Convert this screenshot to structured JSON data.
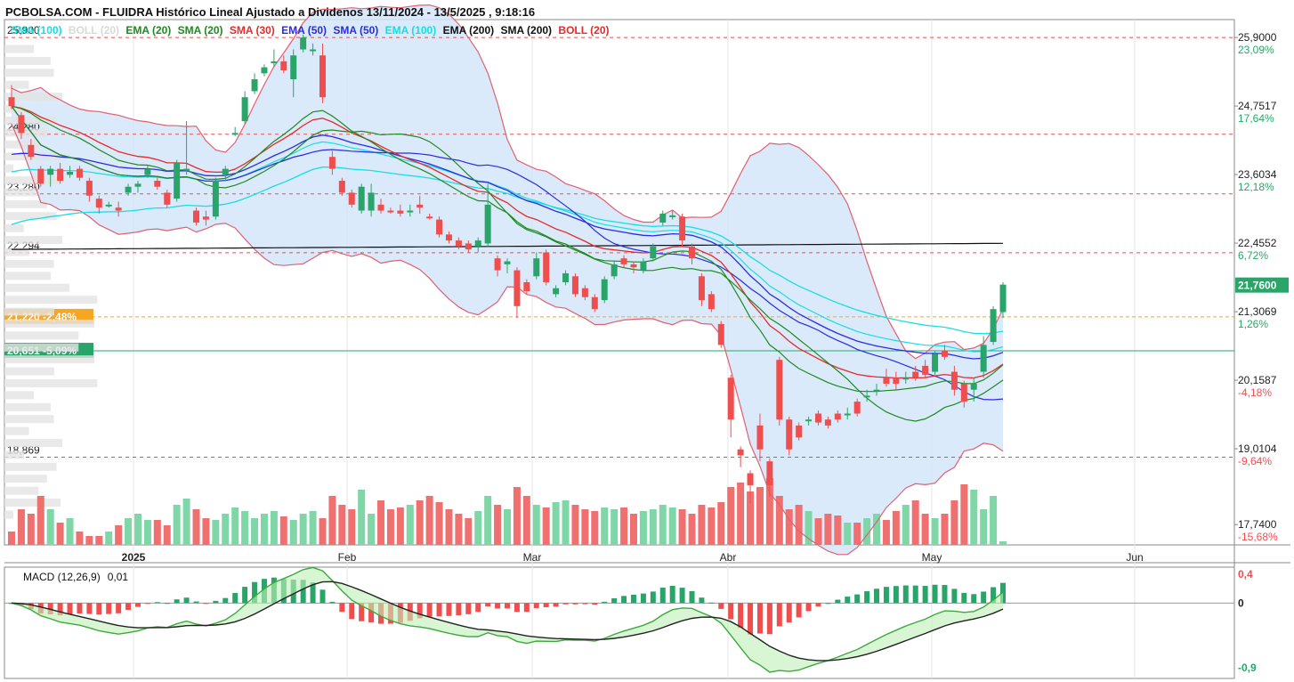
{
  "header": {
    "title": "PCBOLSA.COM - FLUIDRA Histórico Lineal Ajustado a Dividenos 13/11/2024 - 13/5/2025 , 9:18:16"
  },
  "legend": [
    {
      "label": "SMA (100)",
      "color": "#19dde0"
    },
    {
      "label": "BOLL (20)",
      "color": "#d9d9d9"
    },
    {
      "label": "EMA (20)",
      "color": "#1f8a1f"
    },
    {
      "label": "SMA (20)",
      "color": "#1f8a1f"
    },
    {
      "label": "SMA (30)",
      "color": "#e52b2b"
    },
    {
      "label": "EMA (50)",
      "color": "#2b2be5"
    },
    {
      "label": "SMA (50)",
      "color": "#2b2be5"
    },
    {
      "label": "EMA (100)",
      "color": "#19dde0"
    },
    {
      "label": "EMA (200)",
      "color": "#111111"
    },
    {
      "label": "SMA (200)",
      "color": "#111111"
    },
    {
      "label": "BOLL (20)",
      "color": "#e52b2b"
    }
  ],
  "colors": {
    "up": "#2aa56a",
    "down": "#ef4e4e",
    "vol_up": "#7fd6a6",
    "vol_down": "#f07070",
    "boll_fill": "#d4e6fa",
    "boll_line": "#e06070"
  },
  "chart_data": {
    "type": "candlestick",
    "y_axis": {
      "ticks": [
        "25,9000",
        "24,7517",
        "23,6034",
        "22,4552",
        "21,3069",
        "20,1587",
        "19,0104",
        "17,7400"
      ],
      "percent_labels": [
        {
          "text": "23,09%",
          "color": "#2aa56a"
        },
        {
          "text": "17,64%",
          "color": "#2aa56a"
        },
        {
          "text": "12,18%",
          "color": "#2aa56a"
        },
        {
          "text": "6,72%",
          "color": "#2aa56a"
        },
        {
          "text": "1,26%",
          "color": "#2aa56a"
        },
        {
          "text": "-4,18%",
          "color": "#ef4e4e"
        },
        {
          "text": "-9,64%",
          "color": "#ef4e4e"
        },
        {
          "text": "-15,68%",
          "color": "#ef4e4e"
        }
      ],
      "range": [
        17.4,
        26.2
      ]
    },
    "x_axis": {
      "months": [
        "2025",
        "Feb",
        "Mar",
        "Abr",
        "May",
        "Jun"
      ]
    },
    "last_price": "21,7600",
    "reference_lines": [
      {
        "value": 25.9,
        "label": "25,900",
        "color": "#ef4e4e",
        "style": "dashed"
      },
      {
        "value": 24.28,
        "label": "24,280",
        "color": "#ef4e4e",
        "style": "dashed"
      },
      {
        "value": 23.28,
        "label": "23,280",
        "color": "#ef4e4e",
        "style": "dashed"
      },
      {
        "value": 22.294,
        "label": "22,294",
        "color": "#ef4e4e",
        "style": "dashed"
      },
      {
        "value": 18.869,
        "label": "18,869",
        "color": "#2aa56a",
        "style": "dashed"
      }
    ],
    "marker_lines": [
      {
        "value": 21.22,
        "label": "21,220",
        "pct": "-2,48%",
        "color": "#f5a623"
      },
      {
        "value": 20.651,
        "label": "20,651",
        "pct": "-5,09%",
        "color": "#2aa56a"
      }
    ],
    "candles": [
      [
        24.9,
        25.1,
        24.7,
        24.75
      ],
      [
        24.6,
        24.65,
        24.2,
        24.3
      ],
      [
        24.1,
        24.2,
        23.85,
        23.9
      ],
      [
        23.7,
        23.75,
        23.4,
        23.45
      ],
      [
        23.6,
        23.75,
        23.4,
        23.7
      ],
      [
        23.7,
        23.8,
        23.45,
        23.5
      ],
      [
        23.6,
        23.75,
        23.55,
        23.65
      ],
      [
        23.7,
        23.75,
        23.5,
        23.55
      ],
      [
        23.5,
        23.55,
        23.15,
        23.25
      ],
      [
        23.2,
        23.25,
        22.95,
        23.05
      ],
      [
        23.1,
        23.15,
        23.05,
        23.1
      ],
      [
        23.05,
        23.15,
        22.9,
        23.0
      ],
      [
        23.3,
        23.45,
        23.25,
        23.4
      ],
      [
        23.4,
        23.5,
        23.3,
        23.45
      ],
      [
        23.6,
        23.75,
        23.55,
        23.7
      ],
      [
        23.5,
        23.55,
        23.35,
        23.4
      ],
      [
        23.3,
        23.35,
        23.05,
        23.1
      ],
      [
        23.2,
        23.85,
        23.15,
        23.8
      ],
      [
        23.7,
        24.5,
        23.6,
        23.7
      ],
      [
        23.0,
        23.05,
        22.75,
        22.8
      ],
      [
        22.9,
        23.0,
        22.75,
        22.85
      ],
      [
        22.9,
        23.55,
        22.85,
        23.5
      ],
      [
        23.6,
        23.75,
        23.5,
        23.7
      ],
      [
        24.3,
        24.4,
        24.25,
        24.3
      ],
      [
        24.5,
        25.0,
        24.45,
        24.9
      ],
      [
        25.0,
        25.3,
        24.95,
        25.2
      ],
      [
        25.3,
        25.45,
        25.25,
        25.4
      ],
      [
        25.5,
        25.7,
        25.4,
        25.5
      ],
      [
        25.5,
        25.6,
        25.3,
        25.35
      ],
      [
        25.2,
        25.7,
        24.9,
        25.6
      ],
      [
        25.7,
        25.95,
        25.65,
        25.9
      ],
      [
        25.7,
        25.8,
        25.6,
        25.7
      ],
      [
        25.6,
        25.8,
        24.8,
        24.9
      ],
      [
        23.9,
        24.0,
        23.6,
        23.7
      ],
      [
        23.5,
        23.55,
        23.25,
        23.3
      ],
      [
        23.3,
        23.35,
        23.05,
        23.1
      ],
      [
        23.0,
        23.45,
        22.95,
        23.4
      ],
      [
        23.0,
        23.45,
        22.9,
        23.3
      ],
      [
        23.1,
        23.2,
        22.95,
        23.0
      ],
      [
        23.0,
        23.05,
        22.95,
        22.98
      ],
      [
        23.0,
        23.1,
        22.9,
        22.95
      ],
      [
        23.0,
        23.1,
        22.9,
        23.0
      ],
      [
        23.1,
        23.25,
        22.95,
        23.05
      ],
      [
        22.9,
        22.95,
        22.85,
        22.88
      ],
      [
        22.85,
        22.9,
        22.55,
        22.6
      ],
      [
        22.6,
        22.65,
        22.45,
        22.5
      ],
      [
        22.5,
        22.55,
        22.35,
        22.4
      ],
      [
        22.45,
        22.5,
        22.3,
        22.35
      ],
      [
        22.4,
        22.55,
        22.3,
        22.5
      ],
      [
        22.45,
        23.45,
        22.4,
        23.1
      ],
      [
        22.2,
        22.25,
        21.9,
        22.0
      ],
      [
        22.1,
        22.2,
        21.95,
        22.15
      ],
      [
        22.0,
        22.05,
        21.2,
        21.4
      ],
      [
        21.8,
        21.85,
        21.6,
        21.65
      ],
      [
        21.9,
        22.3,
        21.85,
        22.2
      ],
      [
        22.3,
        22.35,
        21.75,
        21.8
      ],
      [
        21.6,
        21.75,
        21.55,
        21.7
      ],
      [
        21.8,
        22.0,
        21.75,
        21.95
      ],
      [
        21.9,
        21.95,
        21.55,
        21.6
      ],
      [
        21.7,
        21.75,
        21.5,
        21.55
      ],
      [
        21.55,
        21.6,
        21.3,
        21.35
      ],
      [
        21.5,
        21.9,
        21.45,
        21.85
      ],
      [
        21.9,
        22.15,
        21.85,
        22.1
      ],
      [
        22.2,
        22.25,
        22.05,
        22.1
      ],
      [
        22.1,
        22.15,
        21.95,
        22.05
      ],
      [
        22.0,
        22.2,
        21.95,
        22.15
      ],
      [
        22.2,
        22.45,
        22.15,
        22.4
      ],
      [
        22.8,
        23.0,
        22.75,
        22.95
      ],
      [
        22.9,
        23.0,
        22.85,
        22.92
      ],
      [
        22.9,
        22.95,
        22.4,
        22.5
      ],
      [
        22.4,
        22.45,
        22.1,
        22.2
      ],
      [
        21.9,
        21.95,
        21.4,
        21.5
      ],
      [
        21.6,
        21.65,
        21.3,
        21.35
      ],
      [
        21.1,
        21.15,
        20.7,
        20.75
      ],
      [
        20.2,
        20.25,
        19.2,
        19.5
      ],
      [
        19.0,
        19.05,
        18.7,
        18.9
      ],
      [
        18.6,
        18.65,
        18.1,
        18.4
      ],
      [
        19.4,
        19.6,
        18.8,
        19.0
      ],
      [
        18.8,
        18.85,
        18.2,
        18.4
      ],
      [
        20.5,
        20.55,
        19.4,
        19.5
      ],
      [
        19.5,
        19.55,
        18.9,
        19.0
      ],
      [
        19.4,
        19.45,
        19.15,
        19.2
      ],
      [
        19.5,
        19.55,
        19.4,
        19.5
      ],
      [
        19.6,
        19.65,
        19.4,
        19.45
      ],
      [
        19.5,
        19.55,
        19.35,
        19.4
      ],
      [
        19.6,
        19.65,
        19.45,
        19.5
      ],
      [
        19.6,
        19.7,
        19.5,
        19.6
      ],
      [
        19.8,
        19.85,
        19.55,
        19.6
      ],
      [
        19.9,
        20.0,
        19.8,
        19.9
      ],
      [
        20.0,
        20.1,
        19.9,
        20.0
      ],
      [
        20.2,
        20.35,
        20.05,
        20.1
      ],
      [
        20.2,
        20.3,
        20.0,
        20.1
      ],
      [
        20.2,
        20.3,
        20.1,
        20.2
      ],
      [
        20.3,
        20.4,
        20.15,
        20.2
      ],
      [
        20.4,
        20.5,
        20.2,
        20.25
      ],
      [
        20.3,
        20.65,
        20.25,
        20.6
      ],
      [
        20.65,
        20.75,
        20.5,
        20.55
      ],
      [
        20.3,
        20.4,
        19.9,
        20.0
      ],
      [
        20.1,
        20.15,
        19.7,
        19.8
      ],
      [
        20.0,
        20.2,
        19.8,
        20.1
      ],
      [
        20.3,
        20.9,
        20.2,
        20.75
      ],
      [
        20.8,
        21.4,
        20.75,
        21.35
      ],
      [
        21.3,
        21.8,
        21.2,
        21.76
      ]
    ],
    "macd": {
      "label": "MACD (12,26,9)",
      "value": "0,01",
      "ticks": [
        "0,4",
        "0",
        "-0,9"
      ],
      "range": [
        -1.05,
        0.5
      ]
    }
  }
}
